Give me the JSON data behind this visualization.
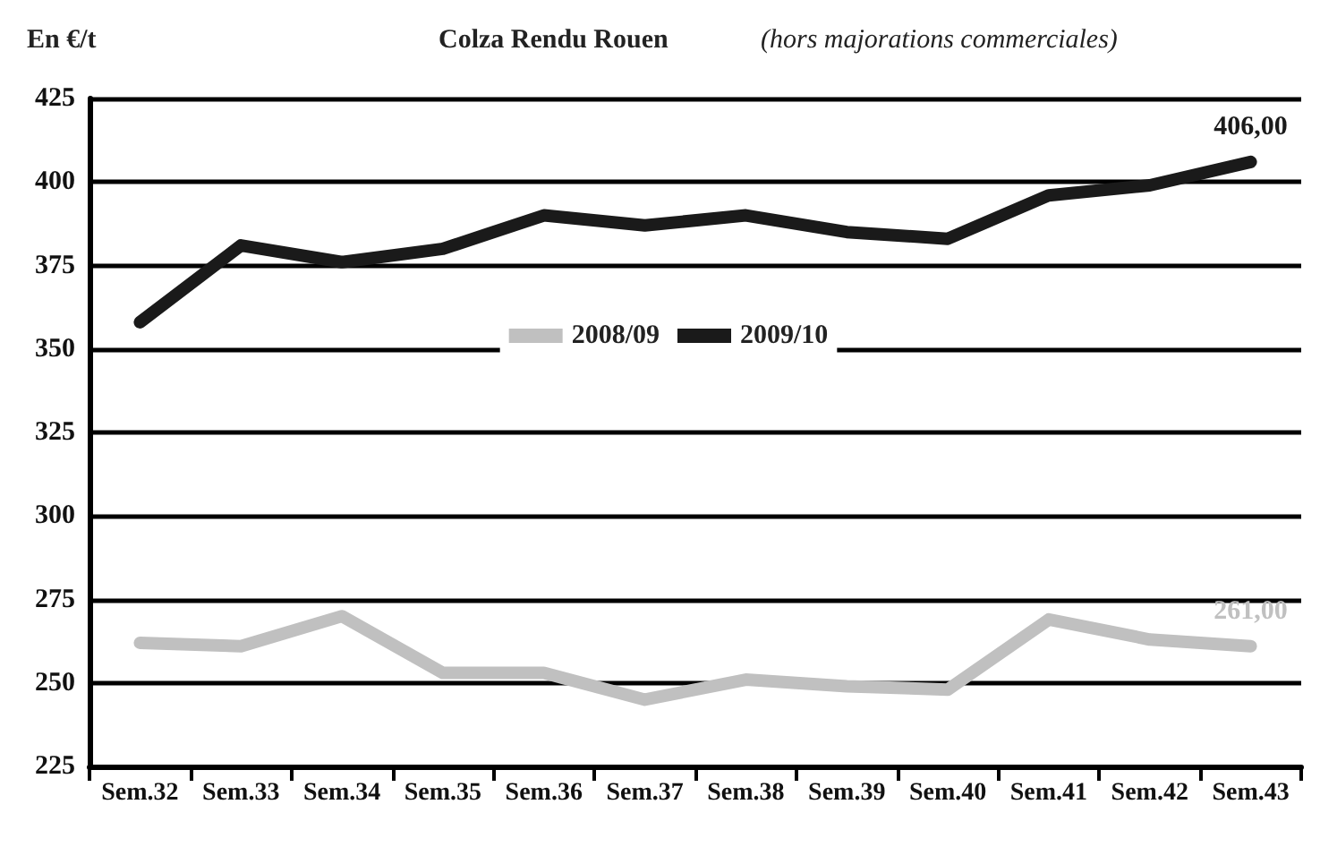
{
  "chart_data": {
    "type": "line",
    "title": "Colza Rendu Rouen",
    "subtitle": "(hors majorations commerciales)",
    "ylabel": "En €/t",
    "categories": [
      "Sem.32",
      "Sem.33",
      "Sem.34",
      "Sem.35",
      "Sem.36",
      "Sem.37",
      "Sem.38",
      "Sem.39",
      "Sem.40",
      "Sem.41",
      "Sem.42",
      "Sem.43"
    ],
    "series": [
      {
        "name": "2008/09",
        "color": "#c0c0c0",
        "values": [
          262,
          261,
          270,
          253,
          253,
          245,
          251,
          249,
          248,
          269,
          263,
          261
        ],
        "value_labels": [
          null,
          null,
          null,
          null,
          null,
          null,
          null,
          null,
          null,
          null,
          null,
          "261,00"
        ]
      },
      {
        "name": "2009/10",
        "color": "#1a1a1a",
        "values": [
          358,
          381,
          376,
          380,
          390,
          387,
          390,
          385,
          383,
          396,
          399,
          406
        ],
        "value_labels": [
          null,
          null,
          null,
          null,
          null,
          null,
          null,
          null,
          null,
          null,
          null,
          "406,00"
        ]
      }
    ],
    "ylim": [
      225,
      425
    ],
    "yticks": [
      225,
      250,
      275,
      300,
      325,
      350,
      375,
      400,
      425
    ],
    "grid": "y",
    "legend": "center",
    "marker": "none",
    "line_style": "solid"
  }
}
